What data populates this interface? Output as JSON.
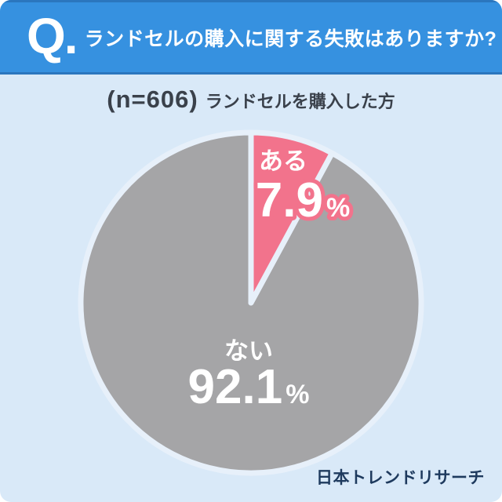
{
  "header": {
    "q_label": "Q.",
    "title": "ランドセルの購入に関する失敗はありますか?"
  },
  "subtitle": {
    "sample": "(n=606)",
    "description": "ランドセルを購入した方"
  },
  "chart_data": {
    "type": "pie",
    "title": "ランドセルの購入に関する失敗はありますか?",
    "sample_label": "(n=606)",
    "sample_size": 606,
    "population": "ランドセルを購入した方",
    "unit": "%",
    "start_angle_deg": 0,
    "direction": "clockwise",
    "legend_position": "inside",
    "slices": [
      {
        "label": "ある",
        "value": 7.9,
        "color": "#f2738c"
      },
      {
        "label": "ない",
        "value": 92.1,
        "color": "#a5a5a7"
      }
    ]
  },
  "footer": {
    "brand": "日本トレンドリサーチ"
  },
  "colors": {
    "header_background": "#3691e0",
    "header_accent_line": "#2b76be",
    "page_background": "#d9e9f8",
    "slice_yes": "#f2738c",
    "slice_no": "#a5a5a7",
    "slice_gap": "#e7f0fa",
    "text_dark": "#3a414b",
    "brand_text": "#1e3a5e",
    "label_text": "#ffffff"
  }
}
